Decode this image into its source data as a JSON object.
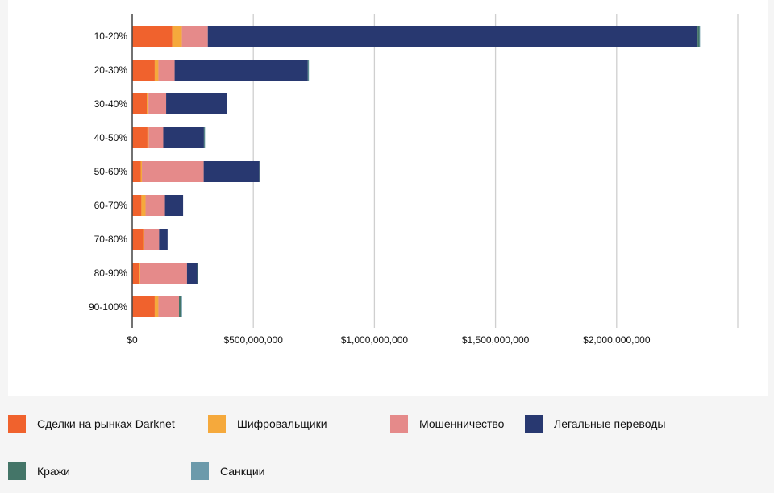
{
  "chart_data": {
    "type": "bar",
    "orientation": "horizontal",
    "stacked": true,
    "categories": [
      "10-20%",
      "20-30%",
      "30-40%",
      "40-50%",
      "50-60%",
      "60-70%",
      "70-80%",
      "80-90%",
      "90-100%"
    ],
    "x_ticks": [
      "$0",
      "$500,000,000",
      "$1,000,000,000",
      "$1,500,000,000",
      "$2,000,000,000"
    ],
    "xlim": [
      0,
      2500000000
    ],
    "grid": true,
    "legend_position": "bottom",
    "series": [
      {
        "name": "Сделки на рынках Darknet",
        "color": "#f0622d",
        "values": [
          165000000,
          93000000,
          60000000,
          63000000,
          35000000,
          38000000,
          45000000,
          30000000,
          93000000
        ]
      },
      {
        "name": "Шифровальщики",
        "color": "#f5a93c",
        "values": [
          40000000,
          15000000,
          7000000,
          5000000,
          5000000,
          17000000,
          3000000,
          3000000,
          15000000
        ]
      },
      {
        "name": "Мошенничество",
        "color": "#e58a8a",
        "values": [
          107000000,
          67000000,
          73000000,
          60000000,
          255000000,
          80000000,
          63000000,
          193000000,
          85000000
        ]
      },
      {
        "name": "Легальные переводы",
        "color": "#283870",
        "values": [
          2022000000,
          550000000,
          250000000,
          168000000,
          230000000,
          75000000,
          35000000,
          42000000,
          0
        ]
      },
      {
        "name": "Кражи",
        "color": "#447568",
        "values": [
          8000000,
          2000000,
          2000000,
          2000000,
          2000000,
          0,
          0,
          2000000,
          10000000
        ]
      },
      {
        "name": "Санкции",
        "color": "#6c9aab",
        "values": [
          2000000,
          2000000,
          0,
          2000000,
          0,
          0,
          0,
          0,
          2000000
        ]
      }
    ]
  }
}
